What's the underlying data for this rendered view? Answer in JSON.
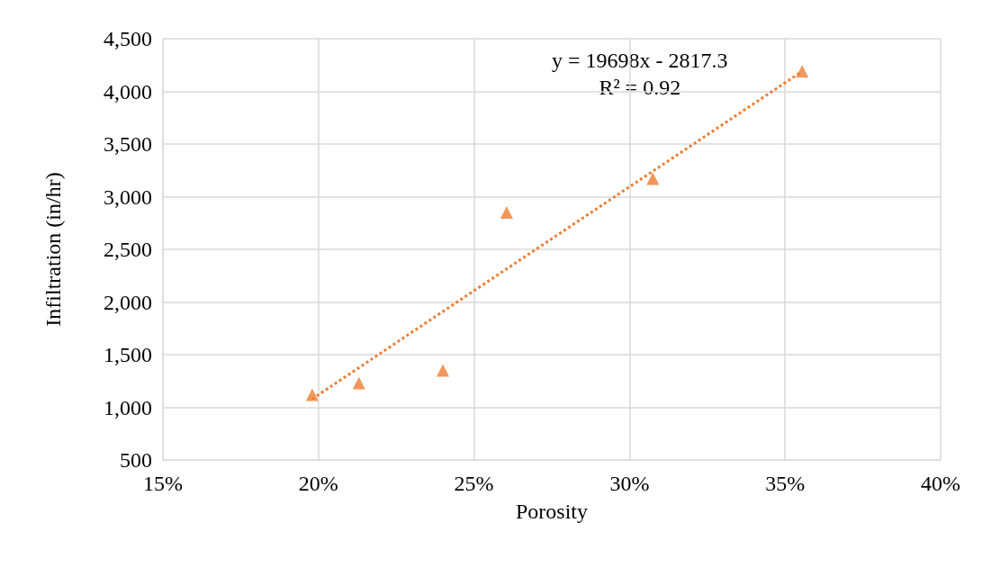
{
  "chart_data": {
    "type": "scatter",
    "xlabel": "Porosity",
    "ylabel": "Infiltration (in/hr)",
    "xlim": [
      15,
      40
    ],
    "xticks": [
      {
        "value": 15,
        "label": "15%"
      },
      {
        "value": 20,
        "label": "20%"
      },
      {
        "value": 25,
        "label": "25%"
      },
      {
        "value": 30,
        "label": "30%"
      },
      {
        "value": 35,
        "label": "35%"
      },
      {
        "value": 40,
        "label": "40%"
      }
    ],
    "ylim": [
      500,
      4500
    ],
    "yticks": [
      {
        "value": 500,
        "label": "500"
      },
      {
        "value": 1000,
        "label": "1,000"
      },
      {
        "value": 1500,
        "label": "1,500"
      },
      {
        "value": 2000,
        "label": "2,000"
      },
      {
        "value": 2500,
        "label": "2,500"
      },
      {
        "value": 3000,
        "label": "3,000"
      },
      {
        "value": 3500,
        "label": "3,500"
      },
      {
        "value": 4000,
        "label": "4,000"
      },
      {
        "value": 4500,
        "label": "4,500"
      }
    ],
    "grid": true,
    "marker": "triangle",
    "annotations": [
      "y = 19698x - 2817.3",
      "R² = 0.92"
    ],
    "series": [
      {
        "color": "#ed7d31",
        "x": [
          19.8,
          21.3,
          24.0,
          26.05,
          30.75,
          35.55
        ],
        "values": [
          1120,
          1230,
          1350,
          2850,
          3170,
          4190
        ]
      },
      {
        "type": "line",
        "color": "#ed7d31",
        "line_style": "dotted",
        "marker": "none",
        "x": [
          19.8,
          35.5
        ],
        "values": [
          1080,
          4180
        ]
      }
    ]
  }
}
